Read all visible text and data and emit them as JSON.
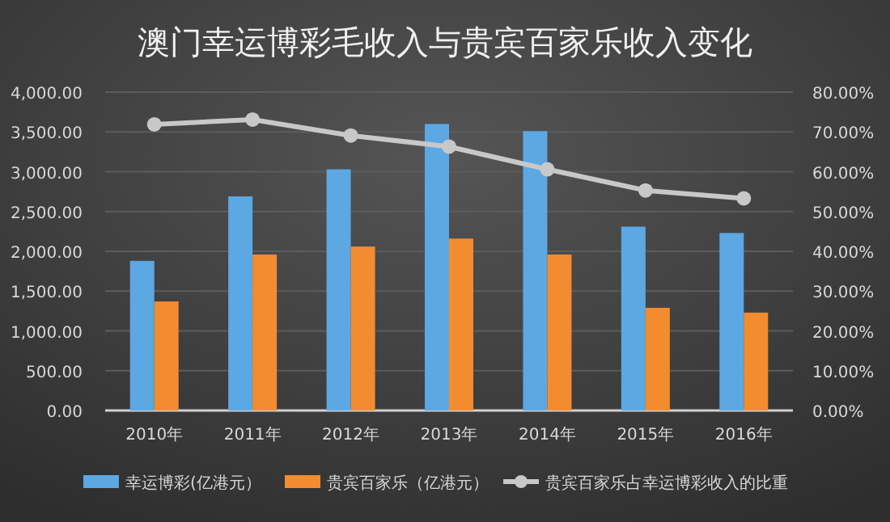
{
  "chart_data": {
    "type": "bar",
    "title": "澳门幸运博彩毛收入与贵宾百家乐收入变化",
    "categories": [
      "2010年",
      "2011年",
      "2012年",
      "2013年",
      "2014年",
      "2015年",
      "2016年"
    ],
    "series": [
      {
        "name": "幸运博彩(亿港元）",
        "color": "#5ba8e3",
        "values": [
          1880,
          2690,
          3030,
          3600,
          3510,
          2310,
          2230
        ]
      },
      {
        "name": "贵宾百家乐（亿港元）",
        "color": "#f28c2f",
        "values": [
          1370,
          1960,
          2060,
          2160,
          1960,
          1290,
          1230
        ]
      },
      {
        "name": "贵宾百家乐占幸运博彩收入的比重",
        "type": "line",
        "axis": "y2",
        "color": "#c8c8c8",
        "marker": "circle",
        "values": [
          71.9,
          73.1,
          69.1,
          66.3,
          60.6,
          55.3,
          53.3
        ]
      }
    ],
    "ylim": [
      0,
      4000
    ],
    "yticks": [
      {
        "value": 0,
        "label": "0.00"
      },
      {
        "value": 500,
        "label": "500.00"
      },
      {
        "value": 1000,
        "label": "1,000.00"
      },
      {
        "value": 1500,
        "label": "1,500.00"
      },
      {
        "value": 2000,
        "label": "2,000.00"
      },
      {
        "value": 2500,
        "label": "2,500.00"
      },
      {
        "value": 3000,
        "label": "3,000.00"
      },
      {
        "value": 3500,
        "label": "3,500.00"
      },
      {
        "value": 4000,
        "label": "4,000.00"
      }
    ],
    "y2lim": [
      0,
      80
    ],
    "y2ticks": [
      {
        "value": 0,
        "label": "0.00%"
      },
      {
        "value": 10,
        "label": "10.00%"
      },
      {
        "value": 20,
        "label": "20.00%"
      },
      {
        "value": 30,
        "label": "30.00%"
      },
      {
        "value": 40,
        "label": "40.00%"
      },
      {
        "value": 50,
        "label": "50.00%"
      },
      {
        "value": 60,
        "label": "60.00%"
      },
      {
        "value": 70,
        "label": "70.00%"
      },
      {
        "value": 80,
        "label": "80.00%"
      }
    ],
    "grid": "y",
    "legend": "bottom"
  }
}
